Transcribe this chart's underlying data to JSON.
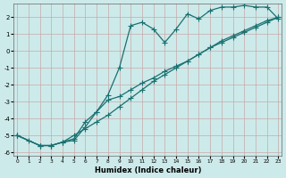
{
  "title": "",
  "xlabel": "Humidex (Indice chaleur)",
  "bg_color": "#cdeaea",
  "grid_color": "#c8a8a8",
  "line_color": "#1a7070",
  "xlim": [
    -0.3,
    23.3
  ],
  "ylim": [
    -6.2,
    2.8
  ],
  "yticks": [
    -6,
    -5,
    -4,
    -3,
    -2,
    -1,
    0,
    1,
    2
  ],
  "xticks": [
    0,
    1,
    2,
    3,
    4,
    5,
    6,
    7,
    8,
    9,
    10,
    11,
    12,
    13,
    14,
    15,
    16,
    17,
    18,
    19,
    20,
    21,
    22,
    23
  ],
  "line1_x": [
    0,
    1,
    2,
    3,
    4,
    5,
    6,
    7,
    8,
    9,
    10,
    11,
    12,
    13,
    14,
    15,
    16,
    17,
    18,
    19,
    20,
    21,
    22,
    23
  ],
  "line1_y": [
    -5.0,
    -5.3,
    -5.6,
    -5.6,
    -5.4,
    -5.3,
    -4.5,
    -3.6,
    -2.6,
    -1.0,
    1.5,
    1.7,
    1.3,
    0.5,
    1.3,
    2.2,
    1.9,
    2.4,
    2.6,
    2.6,
    2.7,
    2.6,
    2.6,
    1.9
  ],
  "line2_x": [
    0,
    2,
    3,
    4,
    5,
    6,
    7,
    8,
    9,
    10,
    11,
    12,
    13,
    14,
    15,
    16,
    17,
    18,
    19,
    20,
    21,
    22,
    23
  ],
  "line2_y": [
    -5.0,
    -5.6,
    -5.6,
    -5.4,
    -5.2,
    -4.2,
    -3.6,
    -2.9,
    -2.7,
    -2.3,
    -1.9,
    -1.6,
    -1.2,
    -0.9,
    -0.6,
    -0.2,
    0.2,
    0.5,
    0.8,
    1.1,
    1.4,
    1.7,
    2.0
  ],
  "line3_x": [
    0,
    2,
    3,
    4,
    5,
    6,
    7,
    8,
    9,
    10,
    11,
    12,
    13,
    14,
    15,
    16,
    17,
    18,
    19,
    20,
    21,
    22,
    23
  ],
  "line3_y": [
    -5.0,
    -5.6,
    -5.6,
    -5.4,
    -5.0,
    -4.6,
    -4.2,
    -3.8,
    -3.3,
    -2.8,
    -2.3,
    -1.8,
    -1.4,
    -1.0,
    -0.6,
    -0.2,
    0.2,
    0.6,
    0.9,
    1.2,
    1.5,
    1.8,
    2.0
  ]
}
